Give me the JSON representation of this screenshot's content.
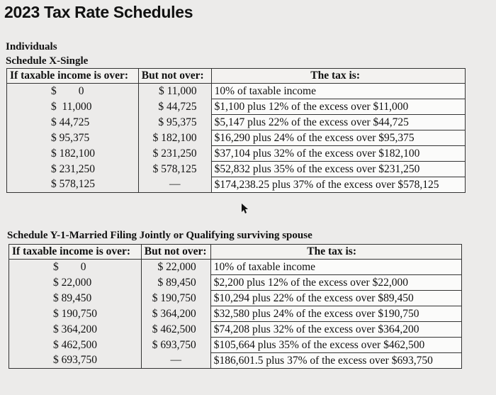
{
  "title": "2023 Tax Rate Schedules",
  "section": "Individuals",
  "schedule_x": {
    "name": "Schedule X-Single",
    "headers": [
      "If taxable income is over:",
      "But not over:",
      "The tax is:"
    ],
    "rows": [
      {
        "over": "$        0",
        "not_over": "$ 11,000",
        "tax": "10% of taxable income"
      },
      {
        "over": "$  11,000",
        "not_over": "$ 44,725",
        "tax": "$1,100 plus 12% of the excess over $11,000"
      },
      {
        "over": "$ 44,725",
        "not_over": "$ 95,375",
        "tax": "$5,147 plus 22% of the excess over $44,725"
      },
      {
        "over": "$ 95,375",
        "not_over": "$ 182,100",
        "tax": "$16,290 plus 24% of the excess over $95,375"
      },
      {
        "over": "$ 182,100",
        "not_over": "$ 231,250",
        "tax": "$37,104 plus 32% of the excess over $182,100"
      },
      {
        "over": "$ 231,250",
        "not_over": "$ 578,125",
        "tax": "$52,832 plus 35% of the excess over $231,250"
      },
      {
        "over": "$ 578,125",
        "not_over": "—",
        "tax": "$174,238.25 plus 37% of the excess over $578,125"
      }
    ]
  },
  "schedule_y1": {
    "name": "Schedule Y-1-Married Filing Jointly or Qualifying surviving spouse",
    "headers": [
      "If taxable income is over:",
      "But not over:",
      "The tax is:"
    ],
    "rows": [
      {
        "over": "$        0",
        "not_over": "$ 22,000",
        "tax": "10% of taxable income"
      },
      {
        "over": "$ 22,000",
        "not_over": "$ 89,450",
        "tax": "$2,200 plus 12% of the excess over $22,000"
      },
      {
        "over": "$ 89,450",
        "not_over": "$ 190,750",
        "tax": "$10,294 plus 22% of the excess over $89,450"
      },
      {
        "over": "$ 190,750",
        "not_over": "$ 364,200",
        "tax": "$32,580 plus 24% of the excess over $190,750"
      },
      {
        "over": "$ 364,200",
        "not_over": "$ 462,500",
        "tax": "$74,208 plus 32% of the excess over $364,200"
      },
      {
        "over": "$ 462,500",
        "not_over": "$ 693,750",
        "tax": "$105,664 plus 35% of the excess over $462,500"
      },
      {
        "over": "$ 693,750",
        "not_over": "—",
        "tax": "$186,601.5 plus 37% of the excess over $693,750"
      }
    ]
  }
}
